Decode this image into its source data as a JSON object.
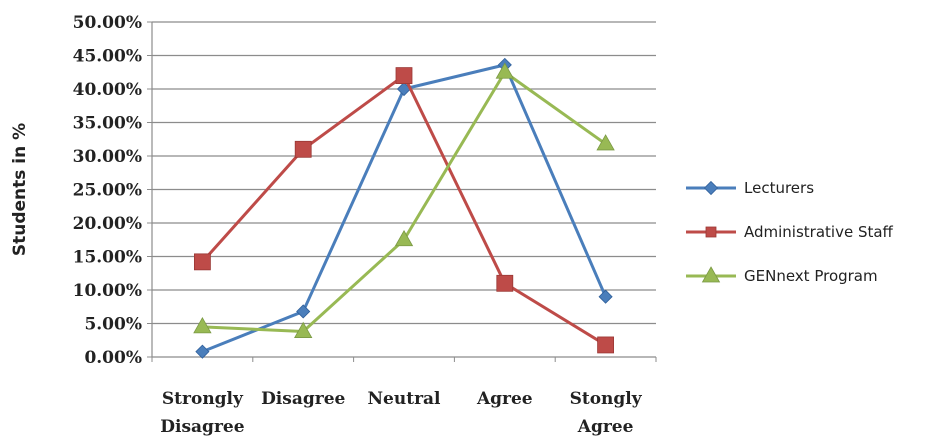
{
  "chart_data": {
    "type": "line",
    "title": "",
    "xlabel": "",
    "ylabel": "Students in %",
    "categories": [
      [
        "Strongly",
        "Disagree"
      ],
      [
        "Disagree"
      ],
      [
        "Neutral"
      ],
      [
        "Agree"
      ],
      [
        "Stongly",
        "Agree"
      ]
    ],
    "y_ticks": [
      "0.00%",
      "5.00%",
      "10.00%",
      "15.00%",
      "20.00%",
      "25.00%",
      "30.00%",
      "35.00%",
      "40.00%",
      "45.00%",
      "50.00%"
    ],
    "ylim": [
      0,
      50
    ],
    "grid": true,
    "legend_position": "right",
    "series": [
      {
        "name": "Lecturers",
        "color": "#4a7ebb",
        "marker": "diamond",
        "values": [
          0.8,
          6.8,
          40.0,
          43.6,
          9.0
        ]
      },
      {
        "name": "Administrative  Staff",
        "color": "#be4b48",
        "marker": "square",
        "values": [
          14.2,
          31.0,
          42.0,
          11.0,
          1.8
        ]
      },
      {
        "name": "GENnext Program",
        "color": "#98b954",
        "marker": "triangle",
        "values": [
          4.5,
          3.8,
          17.5,
          42.5,
          31.8
        ]
      }
    ]
  }
}
